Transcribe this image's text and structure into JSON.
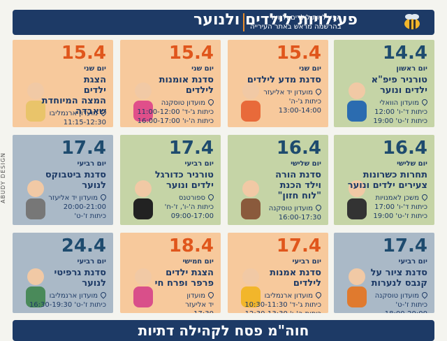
{
  "header": {
    "title": "פעילויות לילדים ולנוער",
    "subtitle": [
      "הפעילויות לילדים ולנוער",
      "בהרשמה מראש באתר העירייה"
    ]
  },
  "side_text": "ABUDY DESIGN",
  "cards": [
    {
      "date": "14.4",
      "day": "יום ראשון",
      "title": [
        "טורניר פיפ\"א",
        "ילדים ונוער"
      ],
      "location": "מועדון הוואלי",
      "details": [
        "כיתות ד'-ו' 12:00",
        "כיתות ז'-ט' 19:00"
      ],
      "color": "#c5d4a6",
      "date_color": "#1e4b6e"
    },
    {
      "date": "15.4",
      "day": "יום שני",
      "title": [
        "סדנת מדע לילדים"
      ],
      "location": "מועדון יד אליעזר",
      "details": [
        "כיתות ג'-ה'",
        "13:00-14:00"
      ],
      "color": "#f7c99c",
      "date_color": "#e0561c"
    },
    {
      "date": "15.4",
      "day": "יום שני",
      "title": [
        "סדנת אומנות",
        "לילדים"
      ],
      "location": "מועדון טוסקנה",
      "details": [
        "כיתות ג'-ד' 11:00-12:00",
        "כיתות ה'-ו' 16:00-17:00"
      ],
      "color": "#f7c99c",
      "date_color": "#e0561c"
    },
    {
      "date": "15.4",
      "day": "יום שני",
      "title": [
        "הצגת",
        "ילדים",
        "המצה המיוחדת שאבדה"
      ],
      "location": "מועדון ארנמליבו",
      "details": [
        "11:15-12:30",
        "גילאי 4-7"
      ],
      "color": "#f7c99c",
      "date_color": "#e0561c"
    },
    {
      "date": "16.4",
      "day": "יום שלישי",
      "title": [
        "תחרות כשרונות",
        "צעירים ילדים ונוער"
      ],
      "location": "משכן לאמנויות",
      "details": [
        "כיתות ד'-ו' 17:00",
        "כיתות ז'-ט' 19:00"
      ],
      "color": "#c5d4a6",
      "date_color": "#1e4b6e"
    },
    {
      "date": "16.4",
      "day": "יום שלישי",
      "title": [
        "סדנת הורה",
        "וילד הכנת",
        "\"לוח חזון\""
      ],
      "location": "מועדון טוסקנה",
      "details": [
        "16:00-17:30"
      ],
      "color": "#c5d4a6",
      "date_color": "#1e4b6e"
    },
    {
      "date": "17.4",
      "day": "יום רביעי",
      "title": [
        "טורניר כדורגל",
        "ילדים ונוער"
      ],
      "location": "ספורטנס",
      "details": [
        "כיתות ה'-ו', ז'-ח'",
        "09:00-17:00"
      ],
      "color": "#c5d4a6",
      "date_color": "#1e4b6e"
    },
    {
      "date": "17.4",
      "day": "יום רביעי",
      "title": [
        "סדנת ביטבוקס",
        "לנוער"
      ],
      "location": "מועדון יד אליעזר",
      "details": [
        "20:00-21:00",
        "כיתות ז'-ט'"
      ],
      "color": "#aab9c7",
      "date_color": "#1e4b6e"
    },
    {
      "date": "17.4",
      "day": "יום רביעי",
      "title": [
        "סדנת ציור על",
        "קנבס לנערות"
      ],
      "location": "מועדון טוסקנה",
      "details": [
        "כיתות ז'-ט'",
        "18:00-20:00"
      ],
      "color": "#aab9c7",
      "date_color": "#1e4b6e"
    },
    {
      "date": "17.4",
      "day": "יום רביעי",
      "title": [
        "סדנת אמנות",
        "לילדים"
      ],
      "location": "מועדון ארנמליבו",
      "details": [
        "כיתות ג'-ד' 10:30-11:30",
        "כיתות ה'-ו' 12:30-13:30"
      ],
      "color": "#f7c99c",
      "date_color": "#e0561c"
    },
    {
      "date": "18.4",
      "day": "יום חמישי",
      "title": [
        "הצגת ילדים",
        "פרפר ופרח חי"
      ],
      "location": "מועדון",
      "details": [
        "יד אליעזר",
        "17:30"
      ],
      "color": "#f7c99c",
      "date_color": "#e0561c"
    },
    {
      "date": "24.4",
      "day": "יום רביעי",
      "title": [
        "סדנת גרפיטי",
        "לנוער"
      ],
      "location": "מועדון ארנמליבו",
      "details": [
        "כיתות ז'-ט' 16:30-19:30"
      ],
      "color": "#aab9c7",
      "date_color": "#1e4b6e"
    }
  ],
  "footer": {
    "title": "חוה\"מ פסח לקהילה דתיות"
  }
}
